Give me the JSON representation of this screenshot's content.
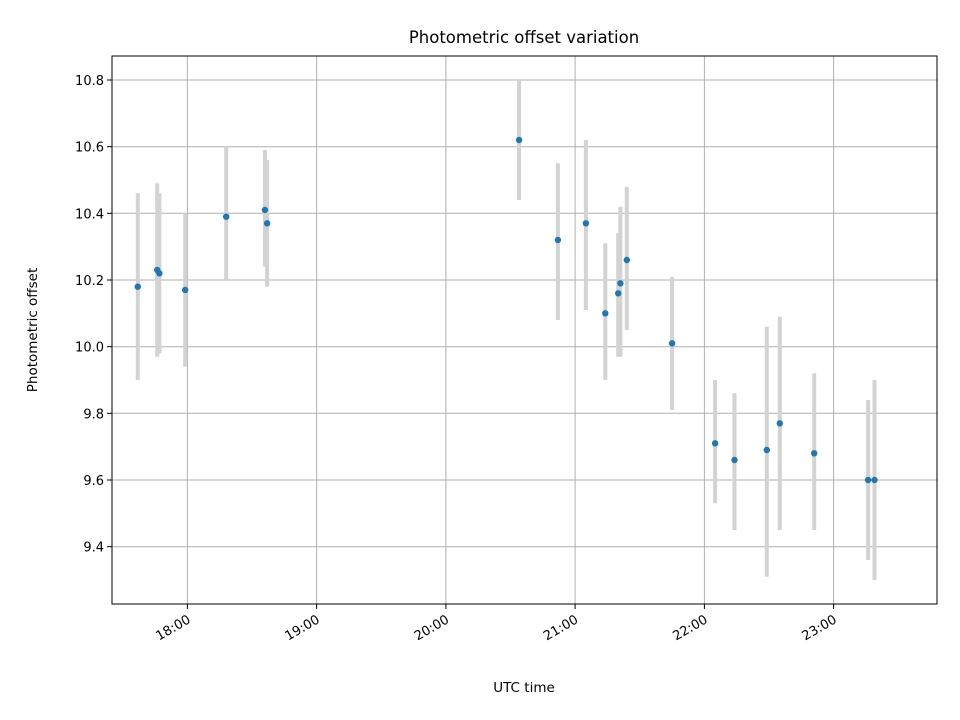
{
  "chart_data": {
    "type": "scatter",
    "title": "Photometric offset variation",
    "xlabel": "UTC time",
    "ylabel": "Photometric offset",
    "x_axis": {
      "kind": "time",
      "range": [
        "17:25",
        "23:48"
      ]
    },
    "ylim": [
      9.228,
      10.872
    ],
    "x_ticks": [
      "18:00",
      "19:00",
      "20:00",
      "21:00",
      "22:00",
      "23:00"
    ],
    "y_ticks": [
      "9.4",
      "9.6",
      "9.8",
      "10.0",
      "10.2",
      "10.4",
      "10.6",
      "10.8"
    ],
    "grid": true,
    "colors": {
      "point": "#1f77b4",
      "error_bar": "#d3d3d3",
      "grid": "#b0b0b0"
    },
    "points": [
      {
        "x": "17:37",
        "y": 10.18,
        "ylow": 9.9,
        "yhigh": 10.46
      },
      {
        "x": "17:46",
        "y": 10.23,
        "ylow": 9.97,
        "yhigh": 10.49
      },
      {
        "x": "17:47",
        "y": 10.22,
        "ylow": 9.98,
        "yhigh": 10.46
      },
      {
        "x": "17:59",
        "y": 10.17,
        "ylow": 9.94,
        "yhigh": 10.4
      },
      {
        "x": "18:18",
        "y": 10.39,
        "ylow": 10.2,
        "yhigh": 10.6
      },
      {
        "x": "18:36",
        "y": 10.41,
        "ylow": 10.24,
        "yhigh": 10.59
      },
      {
        "x": "18:37",
        "y": 10.37,
        "ylow": 10.18,
        "yhigh": 10.56
      },
      {
        "x": "20:34",
        "y": 10.62,
        "ylow": 10.44,
        "yhigh": 10.8
      },
      {
        "x": "20:52",
        "y": 10.32,
        "ylow": 10.08,
        "yhigh": 10.55
      },
      {
        "x": "21:05",
        "y": 10.37,
        "ylow": 10.11,
        "yhigh": 10.62
      },
      {
        "x": "21:14",
        "y": 10.1,
        "ylow": 9.9,
        "yhigh": 10.31
      },
      {
        "x": "21:20",
        "y": 10.16,
        "ylow": 9.97,
        "yhigh": 10.34
      },
      {
        "x": "21:21",
        "y": 10.19,
        "ylow": 9.97,
        "yhigh": 10.42
      },
      {
        "x": "21:24",
        "y": 10.26,
        "ylow": 10.05,
        "yhigh": 10.48
      },
      {
        "x": "21:45",
        "y": 10.01,
        "ylow": 9.81,
        "yhigh": 10.21
      },
      {
        "x": "22:05",
        "y": 9.71,
        "ylow": 9.53,
        "yhigh": 9.9
      },
      {
        "x": "22:14",
        "y": 9.66,
        "ylow": 9.45,
        "yhigh": 9.86
      },
      {
        "x": "22:29",
        "y": 9.69,
        "ylow": 9.31,
        "yhigh": 10.06
      },
      {
        "x": "22:35",
        "y": 9.77,
        "ylow": 9.45,
        "yhigh": 10.09
      },
      {
        "x": "22:51",
        "y": 9.68,
        "ylow": 9.45,
        "yhigh": 9.92
      },
      {
        "x": "23:16",
        "y": 9.6,
        "ylow": 9.36,
        "yhigh": 9.84
      },
      {
        "x": "23:19",
        "y": 9.6,
        "ylow": 9.3,
        "yhigh": 9.9
      }
    ]
  }
}
